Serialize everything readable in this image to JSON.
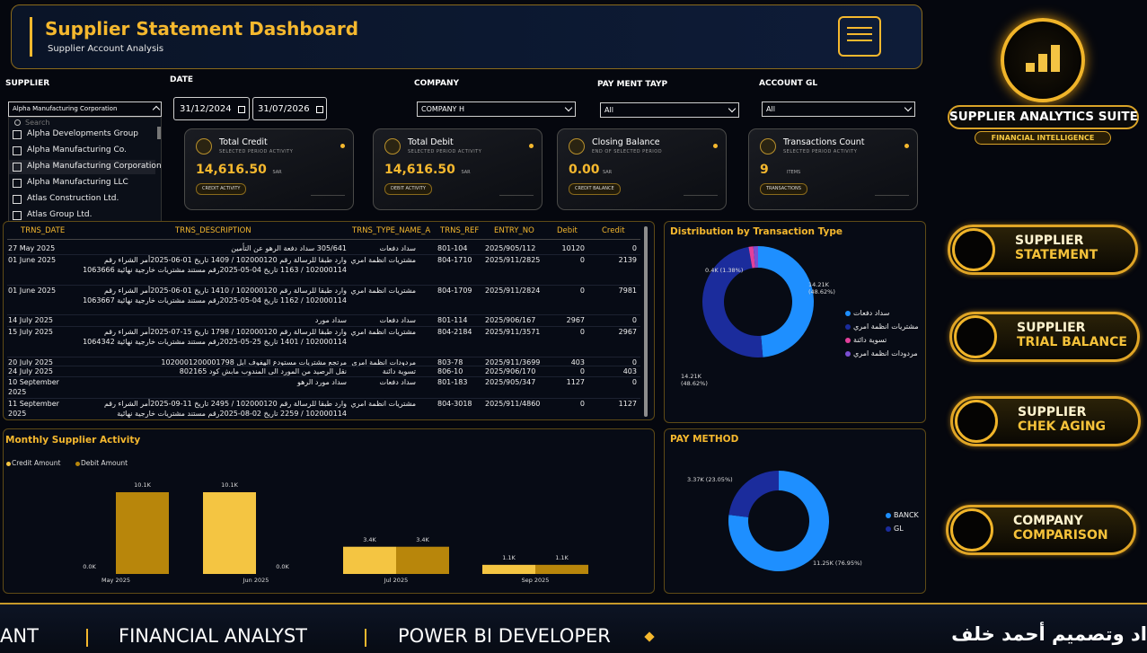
{
  "header": {
    "title": "Supplier Statement Dashboard",
    "subtitle": "Supplier Account Analysis"
  },
  "filters": {
    "supplier": {
      "label": "SUPPLIER",
      "selected": "Alpha Manufacturing Corporation",
      "search": "Search",
      "options": [
        "Alpha Developments Group",
        "Alpha Manufacturing Co.",
        "Alpha Manufacturing Corporation",
        "Alpha Manufacturing LLC",
        "Atlas Construction Ltd.",
        "Atlas Group Ltd."
      ]
    },
    "date": {
      "label": "DATE",
      "from": "31/12/2024",
      "to": "31/07/2026"
    },
    "company": {
      "label": "COMPANY",
      "selected": "COMPANY H"
    },
    "payment_type": {
      "label": "PAY MENT TAYP",
      "selected": "All"
    },
    "account_gl": {
      "label": "ACCOUNT GL",
      "selected": "All"
    }
  },
  "cards": [
    {
      "title": "Total Credit",
      "subtitle": "SELECTED PERIOD ACTIVITY",
      "value": "14,616.50",
      "unit": "SAR",
      "badge": "CREDIT ACTIVITY"
    },
    {
      "title": "Total Debit",
      "subtitle": "SELECTED PERIOD ACTIVITY",
      "value": "14,616.50",
      "unit": "SAR",
      "badge": "DEBIT ACTIVITY"
    },
    {
      "title": "Closing Balance",
      "subtitle": "END OF SELECTED PERIOD",
      "value": "0.00",
      "unit": "SAR",
      "badge": "CREDIT BALANCE"
    },
    {
      "title": "Transactions Count",
      "subtitle": "SELECTED PERIOD ACTIVITY",
      "value": "9",
      "unit": "ITEMS",
      "badge": "TRANSACTIONS"
    }
  ],
  "table": {
    "columns": [
      "TRNS_DATE",
      "TRNS_DESCRIPTION",
      "TRNS_TYPE_NAME_A",
      "TRNS_REF",
      "ENTRY_NO",
      "Debit",
      "Credit"
    ],
    "rows": [
      [
        "27 May 2025",
        "305/641 سداد دفعة الرهو عن التأمين",
        "سداد دفعات",
        "801-104",
        "2025/905/112",
        "10120",
        "0"
      ],
      [
        "01 June 2025",
        "وارد طبقا للرسالة رقم 102000120 / 1409 تاريخ 01-06-2025أمر الشراء رقم 102000114 / 1163 تاريخ 04-05-2025رقم مستند مشتريات خارجية نهائية 1063666",
        "مشتريات انظمة امري",
        "804-1710",
        "2025/911/2825",
        "0",
        "2139"
      ],
      [
        "01 June 2025",
        "وارد طبقا للرسالة رقم 102000120 / 1410 تاريخ 01-06-2025أمر الشراء رقم 102000114 / 1162 تاريخ 04-05-2025رقم مستند مشتريات خارجية نهائية 1063667",
        "مشتريات انظمة امري",
        "804-1709",
        "2025/911/2824",
        "0",
        "7981"
      ],
      [
        "14 July 2025",
        "سداد مورد",
        "سداد دفعات",
        "801-114",
        "2025/906/167",
        "2967",
        "0"
      ],
      [
        "15 July 2025",
        "وارد طبقا للرسالة رقم 102000120 / 1798 تاريخ 15-07-2025أمر الشراء رقم 102000114 / 1401 تاريخ 25-05-2025رقم مستند مشتريات خارجية نهائية 1064342",
        "مشتريات انظمة امري",
        "804-2184",
        "2025/911/3571",
        "0",
        "2967"
      ],
      [
        "20 July 2025",
        "مرتجع مشتريات مستودع الهفوف ابل 1020001200001798",
        "مردودات انظمة امري",
        "803-78",
        "2025/911/3699",
        "403",
        "0"
      ],
      [
        "24 July 2025",
        "نقل الرصيد من المورد الى المندوب مابش كود 802165",
        "تسوية دائنة",
        "806-10",
        "2025/906/170",
        "0",
        "403"
      ],
      [
        "10 September 2025",
        "سداد مورد الرهو",
        "سداد دفعات",
        "801-183",
        "2025/905/347",
        "1127",
        "0"
      ],
      [
        "11 September 2025",
        "وارد طبقا للرسالة رقم 102000120 / 2495 تاريخ 11-09-2025أمر الشراء رقم 102000114 / 2259 تاريخ 02-08-2025رقم مستند مشتريات خارجية نهائية",
        "مشتريات انظمة امري",
        "804-3018",
        "2025/911/4860",
        "0",
        "1127"
      ]
    ]
  },
  "distribution_chart": {
    "type": "pie",
    "title": "Distribution by Transaction Type",
    "categories": [
      "سداد دفعات",
      "مشتريات انظمة امري",
      "تسوية دائنة",
      "مردودات انظمة امري"
    ],
    "values": [
      14.21,
      14.21,
      0.4,
      0.4
    ],
    "value_labels": [
      "14.21K (48.62%)",
      "14.21K (48.62%)",
      "0.4K (1.38%)",
      null
    ],
    "colors": [
      "#1e8fff",
      "#1b2c9c",
      "#e3409b",
      "#7b4fd2"
    ]
  },
  "monthly_chart": {
    "type": "bar",
    "title": "Monthly Supplier Activity",
    "categories": [
      "May 2025",
      "Jun 2025",
      "Jul 2025",
      "Sep 2025"
    ],
    "series": [
      {
        "name": "Credit Amount",
        "color": "#f4c542",
        "values": [
          0,
          10.12,
          3.37,
          1.13
        ],
        "value_labels": [
          "0.0K",
          "10.1K",
          "3.4K",
          "1.1K"
        ]
      },
      {
        "name": "Debit Amount",
        "color": "#b8860b",
        "values": [
          10.12,
          0,
          3.37,
          1.13
        ],
        "value_labels": [
          "10.1K",
          "0.0K",
          "3.4K",
          "1.1K"
        ]
      }
    ]
  },
  "pay_method_chart": {
    "type": "pie",
    "title": "PAY METHOD",
    "categories": [
      "BANCK",
      "GL"
    ],
    "values": [
      11.25,
      3.37
    ],
    "value_labels": [
      "11.25K (76.95%)",
      "3.37K (23.05%)"
    ],
    "colors": [
      "#1e8fff",
      "#1b2c9c"
    ]
  },
  "sidebar": {
    "title": "SUPPLIER ANALYTICS SUITE",
    "subtitle": "FINANCIAL INTELLIGENCE",
    "buttons": [
      {
        "line1": "SUPPLIER",
        "line2": "STATEMENT"
      },
      {
        "line1": "SUPPLIER",
        "line2": "TRIAL BALANCE"
      },
      {
        "line1": "SUPPLIER",
        "line2": "CHEK AGING"
      },
      {
        "line1": "COMPANY",
        "line2": "COMPARISON"
      }
    ]
  },
  "ticker": [
    "ANT",
    "FINANCIAL ANALYST",
    "POWER BI DEVELOPER",
    "اد وتصميم أحمد خلف"
  ]
}
